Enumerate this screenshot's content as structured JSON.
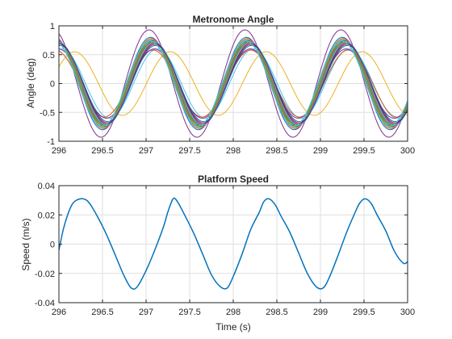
{
  "colors": {
    "series_palette": [
      "#0072BD",
      "#D95319",
      "#EDB120",
      "#7E2F8E",
      "#77AC30",
      "#4DBEEE",
      "#A2142F"
    ],
    "speed_line": "#0072BD",
    "grid": "#dfdfdf",
    "axis": "#262626"
  },
  "chart_data": [
    {
      "type": "line",
      "title": "Metronome Angle",
      "xlabel": "",
      "ylabel": "Angle (deg)",
      "xlim": [
        296,
        300
      ],
      "ylim": [
        -1,
        1
      ],
      "xticks": [
        296,
        296.5,
        297,
        297.5,
        298,
        298.5,
        299,
        299.5,
        300
      ],
      "xtick_labels": [
        "296",
        "296.5",
        "297",
        "297.5",
        "298",
        "298.5",
        "299",
        "299.5",
        "300"
      ],
      "yticks": [
        -1,
        -0.5,
        0,
        0.5,
        1
      ],
      "ytick_labels": [
        "-1",
        "-0.5",
        "0",
        "0.5",
        "1"
      ],
      "grid": true,
      "series_model": "sinusoids: angle = amplitude * sin(2*pi*(t - 296)/period + phase)",
      "series": [
        {
          "amplitude": 0.55,
          "period": 1.1,
          "phase": 0.55,
          "color": "#EDB120"
        },
        {
          "amplitude": 0.6,
          "period": 1.1,
          "phase": 1.4,
          "color": "#4DBEEE"
        },
        {
          "amplitude": 0.58,
          "period": 1.12,
          "phase": 1.8,
          "color": "#D95319"
        },
        {
          "amplitude": 0.6,
          "period": 1.1,
          "phase": 1.6,
          "color": "#7E2F8E"
        },
        {
          "amplitude": 0.93,
          "period": 1.1,
          "phase": 1.95,
          "color": "#7E2F8E"
        },
        {
          "amplitude": 0.8,
          "period": 1.1,
          "phase": 1.85,
          "color": "#0072BD"
        },
        {
          "amplitude": 0.78,
          "period": 1.1,
          "phase": 1.8,
          "color": "#D95319"
        },
        {
          "amplitude": 0.76,
          "period": 1.1,
          "phase": 1.78,
          "color": "#77AC30"
        },
        {
          "amplitude": 0.75,
          "period": 1.1,
          "phase": 1.75,
          "color": "#4DBEEE"
        },
        {
          "amplitude": 0.74,
          "period": 1.1,
          "phase": 1.72,
          "color": "#A2142F"
        },
        {
          "amplitude": 0.73,
          "period": 1.1,
          "phase": 1.7,
          "color": "#EDB120"
        },
        {
          "amplitude": 0.72,
          "period": 1.1,
          "phase": 1.68,
          "color": "#0072BD"
        },
        {
          "amplitude": 0.71,
          "period": 1.1,
          "phase": 1.66,
          "color": "#77AC30"
        },
        {
          "amplitude": 0.7,
          "period": 1.1,
          "phase": 1.63,
          "color": "#D95319"
        },
        {
          "amplitude": 0.72,
          "period": 1.1,
          "phase": 1.6,
          "color": "#4DBEEE"
        },
        {
          "amplitude": 0.7,
          "period": 1.1,
          "phase": 1.57,
          "color": "#7E2F8E"
        },
        {
          "amplitude": 0.68,
          "period": 1.1,
          "phase": 1.55,
          "color": "#A2142F"
        },
        {
          "amplitude": 0.66,
          "period": 1.1,
          "phase": 1.52,
          "color": "#0072BD"
        },
        {
          "amplitude": 0.72,
          "period": 1.1,
          "phase": 1.82,
          "color": "#77AC30"
        },
        {
          "amplitude": 0.74,
          "period": 1.1,
          "phase": 1.88,
          "color": "#4DBEEE"
        }
      ]
    },
    {
      "type": "line",
      "title": "Platform Speed",
      "xlabel": "Time (s)",
      "ylabel": "Speed (m/s)",
      "xlim": [
        296,
        300
      ],
      "ylim": [
        -0.04,
        0.04
      ],
      "xticks": [
        296,
        296.5,
        297,
        297.5,
        298,
        298.5,
        299,
        299.5,
        300
      ],
      "xtick_labels": [
        "296",
        "296.5",
        "297",
        "297.5",
        "298",
        "298.5",
        "299",
        "299.5",
        "300"
      ],
      "yticks": [
        -0.04,
        -0.02,
        0,
        0.02,
        0.04
      ],
      "ytick_labels": [
        "-0.04",
        "-0.02",
        "0",
        "0.02",
        "0.04"
      ],
      "grid": true,
      "series": [
        {
          "color": "#0072BD",
          "x": [
            296,
            296.05,
            296.1,
            296.15,
            296.2,
            296.28,
            296.35,
            296.45,
            296.55,
            296.65,
            296.75,
            296.83,
            296.9,
            297,
            297.1,
            297.2,
            297.25,
            297.31,
            297.36,
            297.45,
            297.55,
            297.65,
            297.75,
            297.85,
            297.93,
            298,
            298.1,
            298.2,
            298.3,
            298.35,
            298.41,
            298.48,
            298.55,
            298.65,
            298.75,
            298.85,
            298.95,
            299.03,
            299.1,
            299.2,
            299.3,
            299.4,
            299.45,
            299.51,
            299.58,
            299.65,
            299.75,
            299.85,
            299.95,
            300
          ],
          "y": [
            -0.004,
            0.01,
            0.02,
            0.027,
            0.03,
            0.031,
            0.028,
            0.018,
            0.006,
            -0.008,
            -0.022,
            -0.03,
            -0.029,
            -0.018,
            -0.004,
            0.012,
            0.022,
            0.031,
            0.029,
            0.019,
            0.007,
            -0.007,
            -0.021,
            -0.029,
            -0.03,
            -0.022,
            -0.007,
            0.01,
            0.022,
            0.029,
            0.031,
            0.027,
            0.019,
            0.008,
            -0.006,
            -0.02,
            -0.029,
            -0.03,
            -0.023,
            -0.008,
            0.008,
            0.022,
            0.028,
            0.031,
            0.028,
            0.02,
            0.009,
            -0.005,
            -0.013,
            -0.012
          ]
        }
      ]
    }
  ]
}
